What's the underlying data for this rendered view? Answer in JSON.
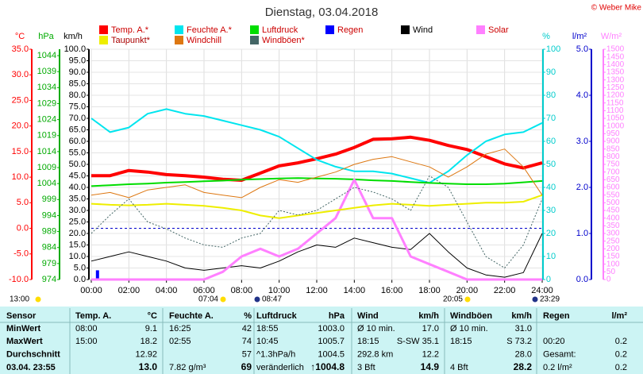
{
  "chart_data": {
    "type": "line",
    "title": "Dienstag, 03.04.2018",
    "copyright": "© Weber Mike",
    "xlim": [
      0,
      24
    ],
    "xticks": [
      {
        "value": 0,
        "label": "00:00"
      },
      {
        "value": 2,
        "label": "02:00"
      },
      {
        "value": 4,
        "label": "04:00"
      },
      {
        "value": 6,
        "label": "06:00"
      },
      {
        "value": 8,
        "label": "08:00"
      },
      {
        "value": 10,
        "label": "10:00"
      },
      {
        "value": 12,
        "label": "12:00"
      },
      {
        "value": 14,
        "label": "14:00"
      },
      {
        "value": 16,
        "label": "16:00"
      },
      {
        "value": 18,
        "label": "18:00"
      },
      {
        "value": 20,
        "label": "20:00"
      },
      {
        "value": 22,
        "label": "22:00"
      },
      {
        "value": 24,
        "label": "24:00"
      }
    ],
    "grid": true,
    "axes": [
      {
        "label": "°C",
        "color": "#ff0000",
        "lim": [
          -10,
          35
        ],
        "ticks": [
          {
            "value": 35,
            "label": "35.0"
          },
          {
            "value": 30,
            "label": "30.0"
          },
          {
            "value": 25,
            "label": "25.0"
          },
          {
            "value": 20,
            "label": "20.0"
          },
          {
            "value": 15,
            "label": "15.0"
          },
          {
            "value": 10,
            "label": "10.0"
          },
          {
            "value": 5,
            "label": "5.0"
          },
          {
            "value": 0,
            "label": "0.0"
          },
          {
            "value": -5,
            "label": "-5.0"
          },
          {
            "value": -10,
            "label": "-10.0"
          }
        ]
      },
      {
        "label": "hPa",
        "color": "#00aa00",
        "lim": [
          974,
          1046
        ],
        "ticks": [
          1044,
          1039,
          1034,
          1029,
          1024,
          1019,
          1014,
          1009,
          1004,
          999,
          994,
          989,
          984,
          979,
          974
        ]
      },
      {
        "label": "km/h",
        "color": "#000000",
        "lim": [
          0,
          100
        ],
        "ticks": [
          {
            "value": 100,
            "label": "100.0"
          },
          {
            "value": 95,
            "label": "95.0"
          },
          {
            "value": 90,
            "label": "90.0"
          },
          {
            "value": 85,
            "label": "85.0"
          },
          {
            "value": 80,
            "label": "80.0"
          },
          {
            "value": 75,
            "label": "75.0"
          },
          {
            "value": 70,
            "label": "70.0"
          },
          {
            "value": 65,
            "label": "65.0"
          },
          {
            "value": 60,
            "label": "60.0"
          },
          {
            "value": 55,
            "label": "55.0"
          },
          {
            "value": 50,
            "label": "50.0"
          },
          {
            "value": 45,
            "label": "45.0"
          },
          {
            "value": 40,
            "label": "40.0"
          },
          {
            "value": 35,
            "label": "35.0"
          },
          {
            "value": 30,
            "label": "30.0"
          },
          {
            "value": 25,
            "label": "25.0"
          },
          {
            "value": 20,
            "label": "20.0"
          },
          {
            "value": 15,
            "label": "15.0"
          },
          {
            "value": 10,
            "label": "10.0"
          },
          {
            "value": 5,
            "label": "5.0"
          },
          {
            "value": 0,
            "label": "0.0"
          }
        ]
      },
      {
        "label": "%",
        "color": "#00cccc",
        "lim": [
          0,
          100
        ],
        "ticks": [
          100,
          90,
          80,
          70,
          60,
          50,
          40,
          30,
          20,
          10,
          0
        ]
      },
      {
        "label": "l/m²",
        "color": "#0000cc",
        "lim": [
          0,
          5
        ],
        "ticks": [
          {
            "value": 5,
            "label": "5.0"
          },
          {
            "value": 4,
            "label": "4.0"
          },
          {
            "value": 3,
            "label": "3.0"
          },
          {
            "value": 2,
            "label": "2.0"
          },
          {
            "value": 1,
            "label": "1.0"
          },
          {
            "value": 0,
            "label": "0.0"
          }
        ]
      },
      {
        "label": "W/m²",
        "color": "#ff80ff",
        "lim": [
          0,
          1500
        ],
        "ticks": [
          1500,
          1450,
          1400,
          1350,
          1300,
          1250,
          1200,
          1150,
          1100,
          1050,
          1000,
          950,
          900,
          850,
          800,
          750,
          700,
          650,
          600,
          550,
          500,
          450,
          400,
          350,
          300,
          250,
          200,
          150,
          100,
          50,
          0
        ]
      }
    ],
    "x": [
      0,
      1,
      2,
      3,
      4,
      5,
      6,
      7,
      8,
      9,
      10,
      11,
      12,
      13,
      14,
      15,
      16,
      17,
      18,
      19,
      20,
      21,
      22,
      23,
      24
    ],
    "series": [
      {
        "name": "Temp. A.*",
        "color": "#ff0000",
        "axis": 0,
        "values": [
          10.3,
          10.3,
          11.3,
          11.0,
          10.5,
          10.3,
          10.0,
          9.6,
          9.4,
          10.8,
          12.2,
          12.8,
          13.6,
          14.5,
          15.8,
          17.4,
          17.5,
          17.8,
          17.2,
          16.2,
          15.4,
          14.0,
          12.6,
          11.8,
          12.8
        ]
      },
      {
        "name": "Feuchte A.*",
        "color": "#00e5ee",
        "axis": 3,
        "values": [
          70,
          64,
          66,
          72,
          74,
          72,
          71,
          69,
          67,
          65,
          62,
          57,
          52,
          49,
          47,
          47,
          46,
          44,
          42,
          47,
          54,
          60,
          63,
          64,
          68
        ]
      },
      {
        "name": "Luftdruck",
        "color": "#00dd00",
        "axis": 1,
        "values": [
          1003.2,
          1003.5,
          1003.8,
          1004.0,
          1004.3,
          1004.5,
          1004.7,
          1004.9,
          1005.2,
          1005.4,
          1005.6,
          1005.7,
          1005.6,
          1005.5,
          1005.3,
          1005.0,
          1004.8,
          1004.5,
          1004.2,
          1004.0,
          1003.8,
          1003.8,
          1004.0,
          1004.4,
          1004.8
        ]
      },
      {
        "name": "Regen",
        "color": "#0000ff",
        "axis": 4,
        "kind": "bar",
        "x": [
          0.33
        ],
        "values": [
          0.2
        ]
      },
      {
        "name": "Wind",
        "color": "#000000",
        "axis": 2,
        "values": [
          8,
          10,
          12,
          10,
          8,
          5,
          4,
          5,
          6,
          5,
          8,
          12,
          15,
          14,
          18,
          16,
          14,
          13,
          20,
          12,
          5,
          2,
          1,
          3,
          20
        ]
      },
      {
        "name": "Solar",
        "color": "#ff80ff",
        "axis": 5,
        "values": [
          0,
          0,
          0,
          0,
          0,
          0,
          0,
          50,
          150,
          200,
          150,
          200,
          300,
          400,
          650,
          400,
          400,
          150,
          100,
          50,
          0,
          0,
          0,
          0,
          0
        ]
      },
      {
        "name": "Taupunkt*",
        "color": "#eeee00",
        "axis": 0,
        "values": [
          4.8,
          4.6,
          4.5,
          4.6,
          4.8,
          4.6,
          4.4,
          4.0,
          3.5,
          2.5,
          2.0,
          2.5,
          3.0,
          3.5,
          4.0,
          4.5,
          4.8,
          4.6,
          4.4,
          4.6,
          4.8,
          5.0,
          5.0,
          5.2,
          6.5
        ]
      },
      {
        "name": "Windchill",
        "color": "#dd7711",
        "axis": 0,
        "values": [
          6.5,
          7.0,
          6.0,
          7.5,
          8.0,
          8.5,
          7.0,
          6.5,
          6.0,
          8.0,
          9.5,
          9.0,
          10.0,
          11.0,
          12.5,
          13.5,
          14.0,
          13.0,
          12.0,
          10.0,
          12.0,
          14.5,
          15.5,
          12.0,
          6.5
        ]
      },
      {
        "name": "Windböen*",
        "color": "#446666",
        "axis": 2,
        "values": [
          20,
          28,
          35,
          25,
          22,
          18,
          15,
          14,
          18,
          20,
          30,
          28,
          30,
          35,
          40,
          38,
          35,
          30,
          45,
          40,
          25,
          10,
          5,
          15,
          35
        ]
      }
    ],
    "astro": [
      "13:00",
      "07:04",
      "08:47",
      "20:05",
      "23:29"
    ]
  },
  "table": {
    "header": [
      "Sensor",
      "Temp. A.",
      "°C",
      "Feuchte A.",
      "%",
      "Luftdruck",
      "hPa",
      "Wind",
      "km/h",
      "Windböen",
      "km/h",
      "Regen",
      "l/m²"
    ],
    "rows": [
      [
        "MinWert",
        "08:00",
        "9.1",
        "16:25",
        "42",
        "18:55",
        "1003.0",
        "Ø 10 min.",
        "17.0",
        "Ø 10 min.",
        "31.0",
        null,
        null
      ],
      [
        "MaxWert",
        "15:00",
        "18.2",
        "02:55",
        "74",
        "10:45",
        "1005.7",
        "18:15",
        "S-SW 35.1",
        "18:15",
        "S 73.2",
        "00:20",
        "0.2"
      ],
      [
        "Durchschnitt",
        null,
        "12.92",
        null,
        "57",
        "^1.3hPa/h",
        "1004.5",
        "292.8 km",
        "12.2",
        null,
        "28.0",
        "Gesamt:",
        "0.2"
      ],
      [
        "03.04. 23:55",
        null,
        "13.0",
        "7.82 g/m³",
        "69",
        "veränderlich",
        "↑1004.8",
        "3 Bft",
        "14.9",
        "4 Bft",
        "28.2",
        "0.2 l/m²",
        "0.2"
      ]
    ]
  }
}
